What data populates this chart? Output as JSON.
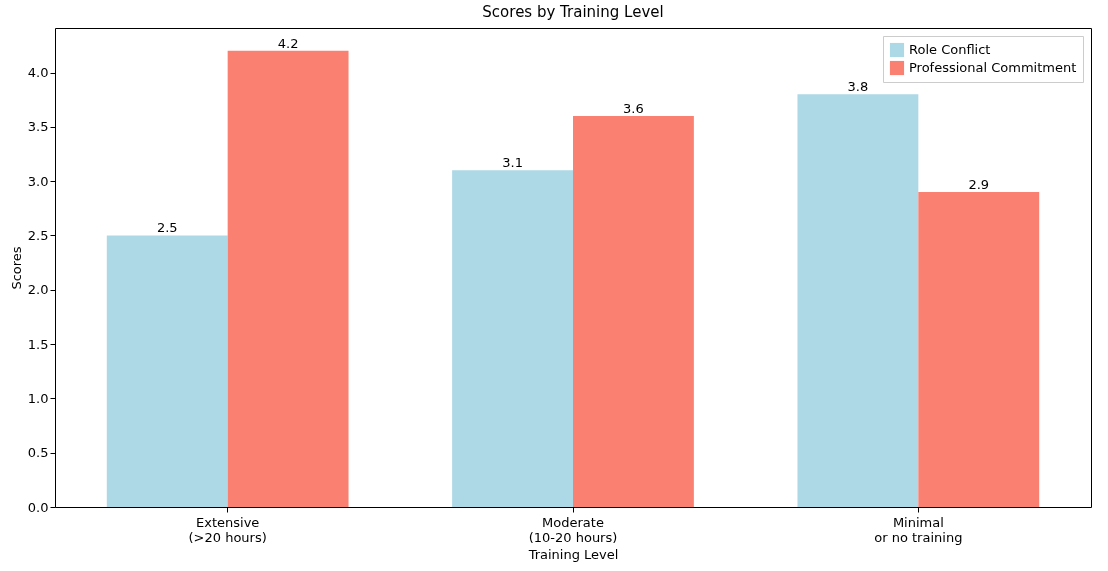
{
  "chart_data": {
    "type": "bar",
    "title": "Scores by Training Level",
    "xlabel": "Training Level",
    "ylabel": "Scores",
    "categories": [
      "Extensive\n(>20 hours)",
      "Moderate\n(10-20 hours)",
      "Minimal\nor no training"
    ],
    "series": [
      {
        "name": "Role Conflict",
        "color": "#add8e6",
        "values": [
          2.5,
          3.1,
          3.8
        ]
      },
      {
        "name": "Professional Commitment",
        "color": "#fa8072",
        "values": [
          4.2,
          3.6,
          2.9
        ]
      }
    ],
    "ylim": [
      0,
      4.41
    ],
    "yticks": [
      {
        "value": 0,
        "label": "0.0"
      },
      0.5,
      {
        "value": 1,
        "label": "1.0"
      },
      1.5,
      {
        "value": 2,
        "label": "2.0"
      },
      2.5,
      {
        "value": 3,
        "label": "3.0"
      },
      3.5,
      {
        "value": 4,
        "label": "4.0"
      }
    ],
    "grid": false,
    "legend": "top right",
    "data_labels": true
  }
}
